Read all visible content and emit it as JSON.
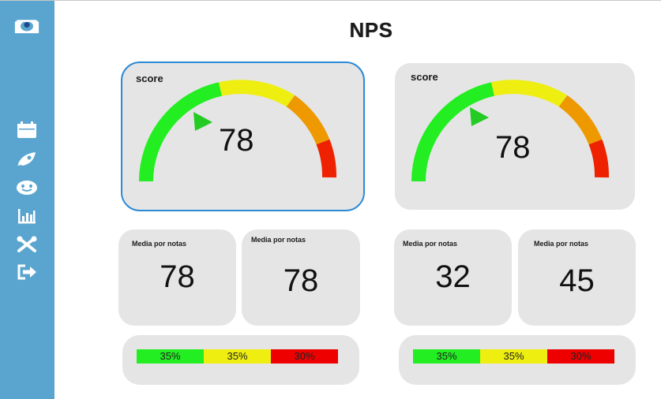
{
  "page": {
    "title": "NPS"
  },
  "sidebar": {
    "items": [
      {
        "name": "logo-icon"
      },
      {
        "name": "calendar-icon"
      },
      {
        "name": "rocket-icon"
      },
      {
        "name": "smiley-icon"
      },
      {
        "name": "bar-chart-icon"
      },
      {
        "name": "tools-icon"
      },
      {
        "name": "logout-icon"
      }
    ]
  },
  "colors": {
    "sidebar": "#5aa5cf",
    "green": "#22ee22",
    "yellow": "#eeee11",
    "orange": "#ee9900",
    "red": "#ee2200",
    "card": "#e5e5e5",
    "selection": "#2b8ad6"
  },
  "score_cards": [
    {
      "label": "score",
      "value": "78"
    },
    {
      "label": "score",
      "value": "78"
    }
  ],
  "media_cards": [
    {
      "label": "Media por notas",
      "value": "78"
    },
    {
      "label": "Media por notas",
      "value": "78"
    },
    {
      "label": "Media por notas",
      "value": "32"
    },
    {
      "label": "Media por notas",
      "value": "45"
    }
  ],
  "distributions": [
    {
      "segments": [
        {
          "label": "35%",
          "share": 35
        },
        {
          "label": "35%",
          "share": 35
        },
        {
          "label": "30%",
          "share": 30
        }
      ]
    },
    {
      "segments": [
        {
          "label": "35%",
          "share": 35
        },
        {
          "label": "35%",
          "share": 35
        },
        {
          "label": "30%",
          "share": 30
        }
      ]
    }
  ]
}
